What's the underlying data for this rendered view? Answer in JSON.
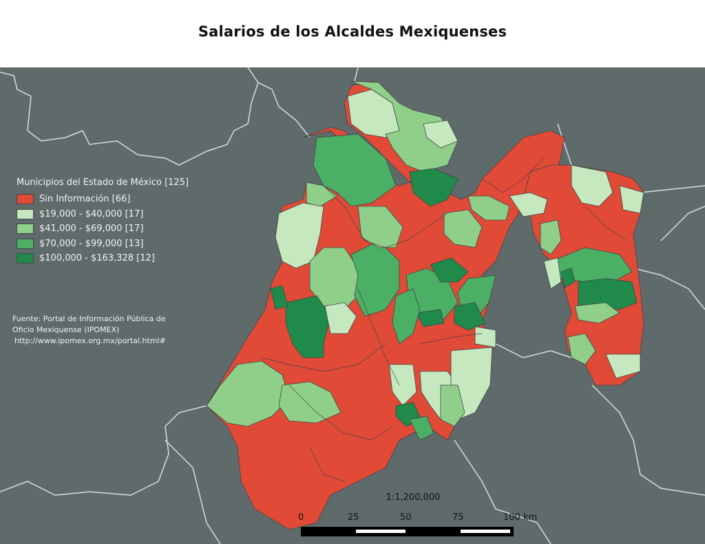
{
  "title": "Salarios de los Alcaldes Mexiquenses",
  "legend": {
    "title": "Municipios del Estado de México [125]",
    "items": [
      {
        "label": "Sin Información [66]",
        "color": "#e24a38"
      },
      {
        "label": "$19,000 - $40,000  [17]",
        "color": "#c6e8bf"
      },
      {
        "label": "$41,000 - $69,000  [17]",
        "color": "#8fcf8a"
      },
      {
        "label": "$70,000 - $99,000  [13]",
        "color": "#4caf66"
      },
      {
        "label": "$100,000 - $163,328  [12]",
        "color": "#1f8a4a"
      }
    ]
  },
  "source": {
    "line1": "Fuente: Portal de Información Pública de",
    "line2": "Oficio Mexiquense (IPOMEX)",
    "url": "http://www.ipomex.org.mx/portal.html#"
  },
  "scale": {
    "ratio": "1:1,200,000",
    "labels": [
      "0",
      "25",
      "50",
      "75",
      "100 km"
    ]
  },
  "colors": {
    "background": "#5f6b6b",
    "border": "#d9dede"
  }
}
